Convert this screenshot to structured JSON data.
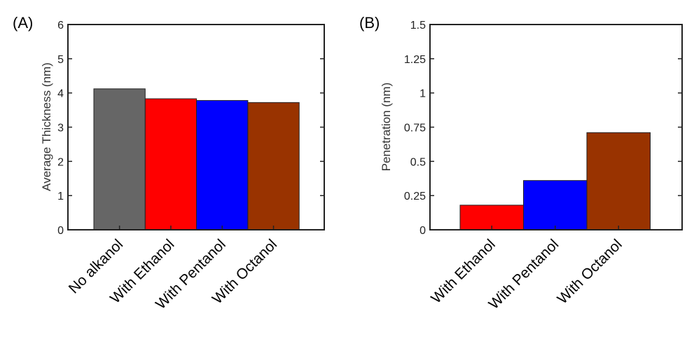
{
  "chart_data": [
    {
      "type": "bar",
      "panel_label": "(A)",
      "title": "",
      "xlabel": "",
      "ylabel": "Average Thickness (nm)",
      "categories": [
        "No alkanol",
        "With Ethanol",
        "With Pentanol",
        "With Octanol"
      ],
      "values": [
        4.12,
        3.83,
        3.78,
        3.72
      ],
      "colors": [
        "#666666",
        "#ff0000",
        "#0000ff",
        "#993300"
      ],
      "ylim": [
        0,
        6
      ],
      "yticks": [
        0,
        1,
        2,
        3,
        4,
        5,
        6
      ],
      "ytick_labels": [
        "0",
        "1",
        "2",
        "3",
        "4",
        "5",
        "6"
      ],
      "grid": false
    },
    {
      "type": "bar",
      "panel_label": "(B)",
      "title": "",
      "xlabel": "",
      "ylabel": "Penetration (nm)",
      "categories": [
        "With Ethanol",
        "With Pentanol",
        "With Octanol"
      ],
      "values": [
        0.18,
        0.36,
        0.71
      ],
      "colors": [
        "#ff0000",
        "#0000ff",
        "#993300"
      ],
      "ylim": [
        0,
        1.5
      ],
      "yticks": [
        0,
        0.25,
        0.5,
        0.75,
        1,
        1.25,
        1.5
      ],
      "ytick_labels": [
        "0",
        "0.25",
        "0.5",
        "0.75",
        "1",
        "1.25",
        "1.5"
      ],
      "grid": false
    }
  ]
}
